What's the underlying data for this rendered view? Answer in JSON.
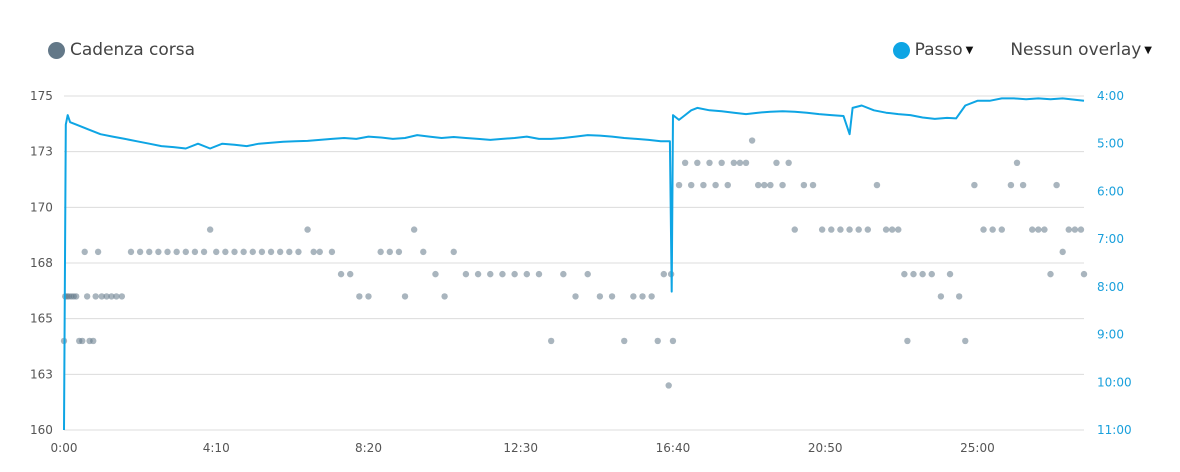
{
  "legend": {
    "cadence_label": "Cadenza corsa",
    "cadence_color": "#637888",
    "pace_label": "Passo",
    "pace_color": "#0ea5e4",
    "overlay_label": "Nessun overlay"
  },
  "chart_data": {
    "type": "scatter+line",
    "x_ticks": [
      "0:00",
      "4:10",
      "8:20",
      "12:30",
      "16:40",
      "20:50",
      "25:00"
    ],
    "x_range_seconds": [
      0,
      1675
    ],
    "y_left": {
      "ticks": [
        "175",
        "173",
        "170",
        "168",
        "165",
        "163",
        "160"
      ],
      "range": [
        160,
        175
      ]
    },
    "y_right": {
      "ticks": [
        "4:00",
        "5:00",
        "6:00",
        "7:00",
        "8:00",
        "9:00",
        "10:00",
        "11:00"
      ],
      "range_min_per_km": [
        4,
        11
      ]
    },
    "grid": true,
    "series": [
      {
        "name": "Cadenza corsa",
        "type": "scatter",
        "axis": "left",
        "x_unit": "seconds",
        "points": [
          [
            0,
            164
          ],
          [
            2,
            166
          ],
          [
            5,
            166
          ],
          [
            8,
            166
          ],
          [
            12,
            166
          ],
          [
            16,
            166
          ],
          [
            20,
            166
          ],
          [
            25,
            164
          ],
          [
            30,
            164
          ],
          [
            34,
            168
          ],
          [
            38,
            166
          ],
          [
            42,
            164
          ],
          [
            48,
            164
          ],
          [
            52,
            166
          ],
          [
            56,
            168
          ],
          [
            62,
            166
          ],
          [
            70,
            166
          ],
          [
            78,
            166
          ],
          [
            86,
            166
          ],
          [
            95,
            166
          ],
          [
            110,
            168
          ],
          [
            125,
            168
          ],
          [
            140,
            168
          ],
          [
            155,
            168
          ],
          [
            170,
            168
          ],
          [
            185,
            168
          ],
          [
            200,
            168
          ],
          [
            215,
            168
          ],
          [
            230,
            168
          ],
          [
            240,
            169
          ],
          [
            250,
            168
          ],
          [
            265,
            168
          ],
          [
            280,
            168
          ],
          [
            295,
            168
          ],
          [
            310,
            168
          ],
          [
            325,
            168
          ],
          [
            340,
            168
          ],
          [
            355,
            168
          ],
          [
            370,
            168
          ],
          [
            385,
            168
          ],
          [
            400,
            169
          ],
          [
            410,
            168
          ],
          [
            420,
            168
          ],
          [
            440,
            168
          ],
          [
            455,
            167
          ],
          [
            470,
            167
          ],
          [
            485,
            166
          ],
          [
            500,
            166
          ],
          [
            520,
            168
          ],
          [
            535,
            168
          ],
          [
            550,
            168
          ],
          [
            560,
            166
          ],
          [
            575,
            169
          ],
          [
            590,
            168
          ],
          [
            610,
            167
          ],
          [
            625,
            166
          ],
          [
            640,
            168
          ],
          [
            660,
            167
          ],
          [
            680,
            167
          ],
          [
            700,
            167
          ],
          [
            720,
            167
          ],
          [
            740,
            167
          ],
          [
            760,
            167
          ],
          [
            780,
            167
          ],
          [
            800,
            164
          ],
          [
            820,
            167
          ],
          [
            840,
            166
          ],
          [
            860,
            167
          ],
          [
            880,
            166
          ],
          [
            900,
            166
          ],
          [
            920,
            164
          ],
          [
            935,
            166
          ],
          [
            950,
            166
          ],
          [
            965,
            166
          ],
          [
            975,
            164
          ],
          [
            985,
            167
          ],
          [
            993,
            162
          ],
          [
            997,
            167
          ],
          [
            1000,
            164
          ],
          [
            1010,
            171
          ],
          [
            1020,
            172
          ],
          [
            1030,
            171
          ],
          [
            1040,
            172
          ],
          [
            1050,
            171
          ],
          [
            1060,
            172
          ],
          [
            1070,
            171
          ],
          [
            1080,
            172
          ],
          [
            1090,
            171
          ],
          [
            1100,
            172
          ],
          [
            1110,
            172
          ],
          [
            1120,
            172
          ],
          [
            1130,
            173
          ],
          [
            1140,
            171
          ],
          [
            1150,
            171
          ],
          [
            1160,
            171
          ],
          [
            1170,
            172
          ],
          [
            1180,
            171
          ],
          [
            1190,
            172
          ],
          [
            1200,
            169
          ],
          [
            1215,
            171
          ],
          [
            1230,
            171
          ],
          [
            1245,
            169
          ],
          [
            1260,
            169
          ],
          [
            1275,
            169
          ],
          [
            1290,
            169
          ],
          [
            1305,
            169
          ],
          [
            1320,
            169
          ],
          [
            1335,
            171
          ],
          [
            1350,
            169
          ],
          [
            1360,
            169
          ],
          [
            1370,
            169
          ],
          [
            1380,
            167
          ],
          [
            1385,
            164
          ],
          [
            1395,
            167
          ],
          [
            1410,
            167
          ],
          [
            1425,
            167
          ],
          [
            1440,
            166
          ],
          [
            1455,
            167
          ],
          [
            1470,
            166
          ],
          [
            1480,
            164
          ],
          [
            1495,
            171
          ],
          [
            1510,
            169
          ],
          [
            1525,
            169
          ],
          [
            1540,
            169
          ],
          [
            1555,
            171
          ],
          [
            1565,
            172
          ],
          [
            1575,
            171
          ],
          [
            1590,
            169
          ],
          [
            1600,
            169
          ],
          [
            1610,
            169
          ],
          [
            1620,
            167
          ],
          [
            1630,
            171
          ],
          [
            1640,
            168
          ],
          [
            1650,
            169
          ],
          [
            1660,
            169
          ],
          [
            1670,
            169
          ],
          [
            1675,
            167
          ]
        ]
      },
      {
        "name": "Passo",
        "type": "line",
        "axis": "right",
        "x_unit": "seconds",
        "y_unit": "min/km",
        "points": [
          [
            0,
            11.0
          ],
          [
            3,
            4.6
          ],
          [
            6,
            4.4
          ],
          [
            10,
            4.55
          ],
          [
            20,
            4.6
          ],
          [
            40,
            4.7
          ],
          [
            60,
            4.8
          ],
          [
            80,
            4.85
          ],
          [
            100,
            4.9
          ],
          [
            120,
            4.95
          ],
          [
            140,
            5.0
          ],
          [
            160,
            5.05
          ],
          [
            180,
            5.07
          ],
          [
            200,
            5.1
          ],
          [
            220,
            5.0
          ],
          [
            240,
            5.1
          ],
          [
            260,
            5.0
          ],
          [
            280,
            5.02
          ],
          [
            300,
            5.05
          ],
          [
            320,
            5.0
          ],
          [
            340,
            4.98
          ],
          [
            360,
            4.96
          ],
          [
            380,
            4.95
          ],
          [
            400,
            4.94
          ],
          [
            420,
            4.92
          ],
          [
            440,
            4.9
          ],
          [
            460,
            4.88
          ],
          [
            480,
            4.9
          ],
          [
            500,
            4.85
          ],
          [
            520,
            4.87
          ],
          [
            540,
            4.9
          ],
          [
            560,
            4.88
          ],
          [
            580,
            4.82
          ],
          [
            600,
            4.85
          ],
          [
            620,
            4.88
          ],
          [
            640,
            4.86
          ],
          [
            660,
            4.88
          ],
          [
            680,
            4.9
          ],
          [
            700,
            4.92
          ],
          [
            720,
            4.9
          ],
          [
            740,
            4.88
          ],
          [
            760,
            4.85
          ],
          [
            780,
            4.9
          ],
          [
            800,
            4.9
          ],
          [
            820,
            4.88
          ],
          [
            840,
            4.85
          ],
          [
            860,
            4.82
          ],
          [
            880,
            4.83
          ],
          [
            900,
            4.85
          ],
          [
            920,
            4.88
          ],
          [
            940,
            4.9
          ],
          [
            960,
            4.92
          ],
          [
            980,
            4.95
          ],
          [
            995,
            4.95
          ],
          [
            998,
            8.1
          ],
          [
            1000,
            4.4
          ],
          [
            1010,
            4.5
          ],
          [
            1020,
            4.4
          ],
          [
            1030,
            4.3
          ],
          [
            1040,
            4.25
          ],
          [
            1060,
            4.3
          ],
          [
            1080,
            4.32
          ],
          [
            1100,
            4.35
          ],
          [
            1120,
            4.38
          ],
          [
            1140,
            4.35
          ],
          [
            1160,
            4.33
          ],
          [
            1180,
            4.32
          ],
          [
            1200,
            4.33
          ],
          [
            1220,
            4.35
          ],
          [
            1240,
            4.38
          ],
          [
            1260,
            4.4
          ],
          [
            1280,
            4.42
          ],
          [
            1290,
            4.8
          ],
          [
            1295,
            4.25
          ],
          [
            1310,
            4.2
          ],
          [
            1330,
            4.3
          ],
          [
            1350,
            4.35
          ],
          [
            1370,
            4.38
          ],
          [
            1390,
            4.4
          ],
          [
            1410,
            4.45
          ],
          [
            1430,
            4.48
          ],
          [
            1450,
            4.46
          ],
          [
            1465,
            4.47
          ],
          [
            1480,
            4.2
          ],
          [
            1500,
            4.1
          ],
          [
            1520,
            4.1
          ],
          [
            1540,
            4.05
          ],
          [
            1560,
            4.05
          ],
          [
            1580,
            4.07
          ],
          [
            1600,
            4.05
          ],
          [
            1620,
            4.07
          ],
          [
            1640,
            4.05
          ],
          [
            1660,
            4.08
          ],
          [
            1675,
            4.1
          ]
        ]
      }
    ]
  }
}
